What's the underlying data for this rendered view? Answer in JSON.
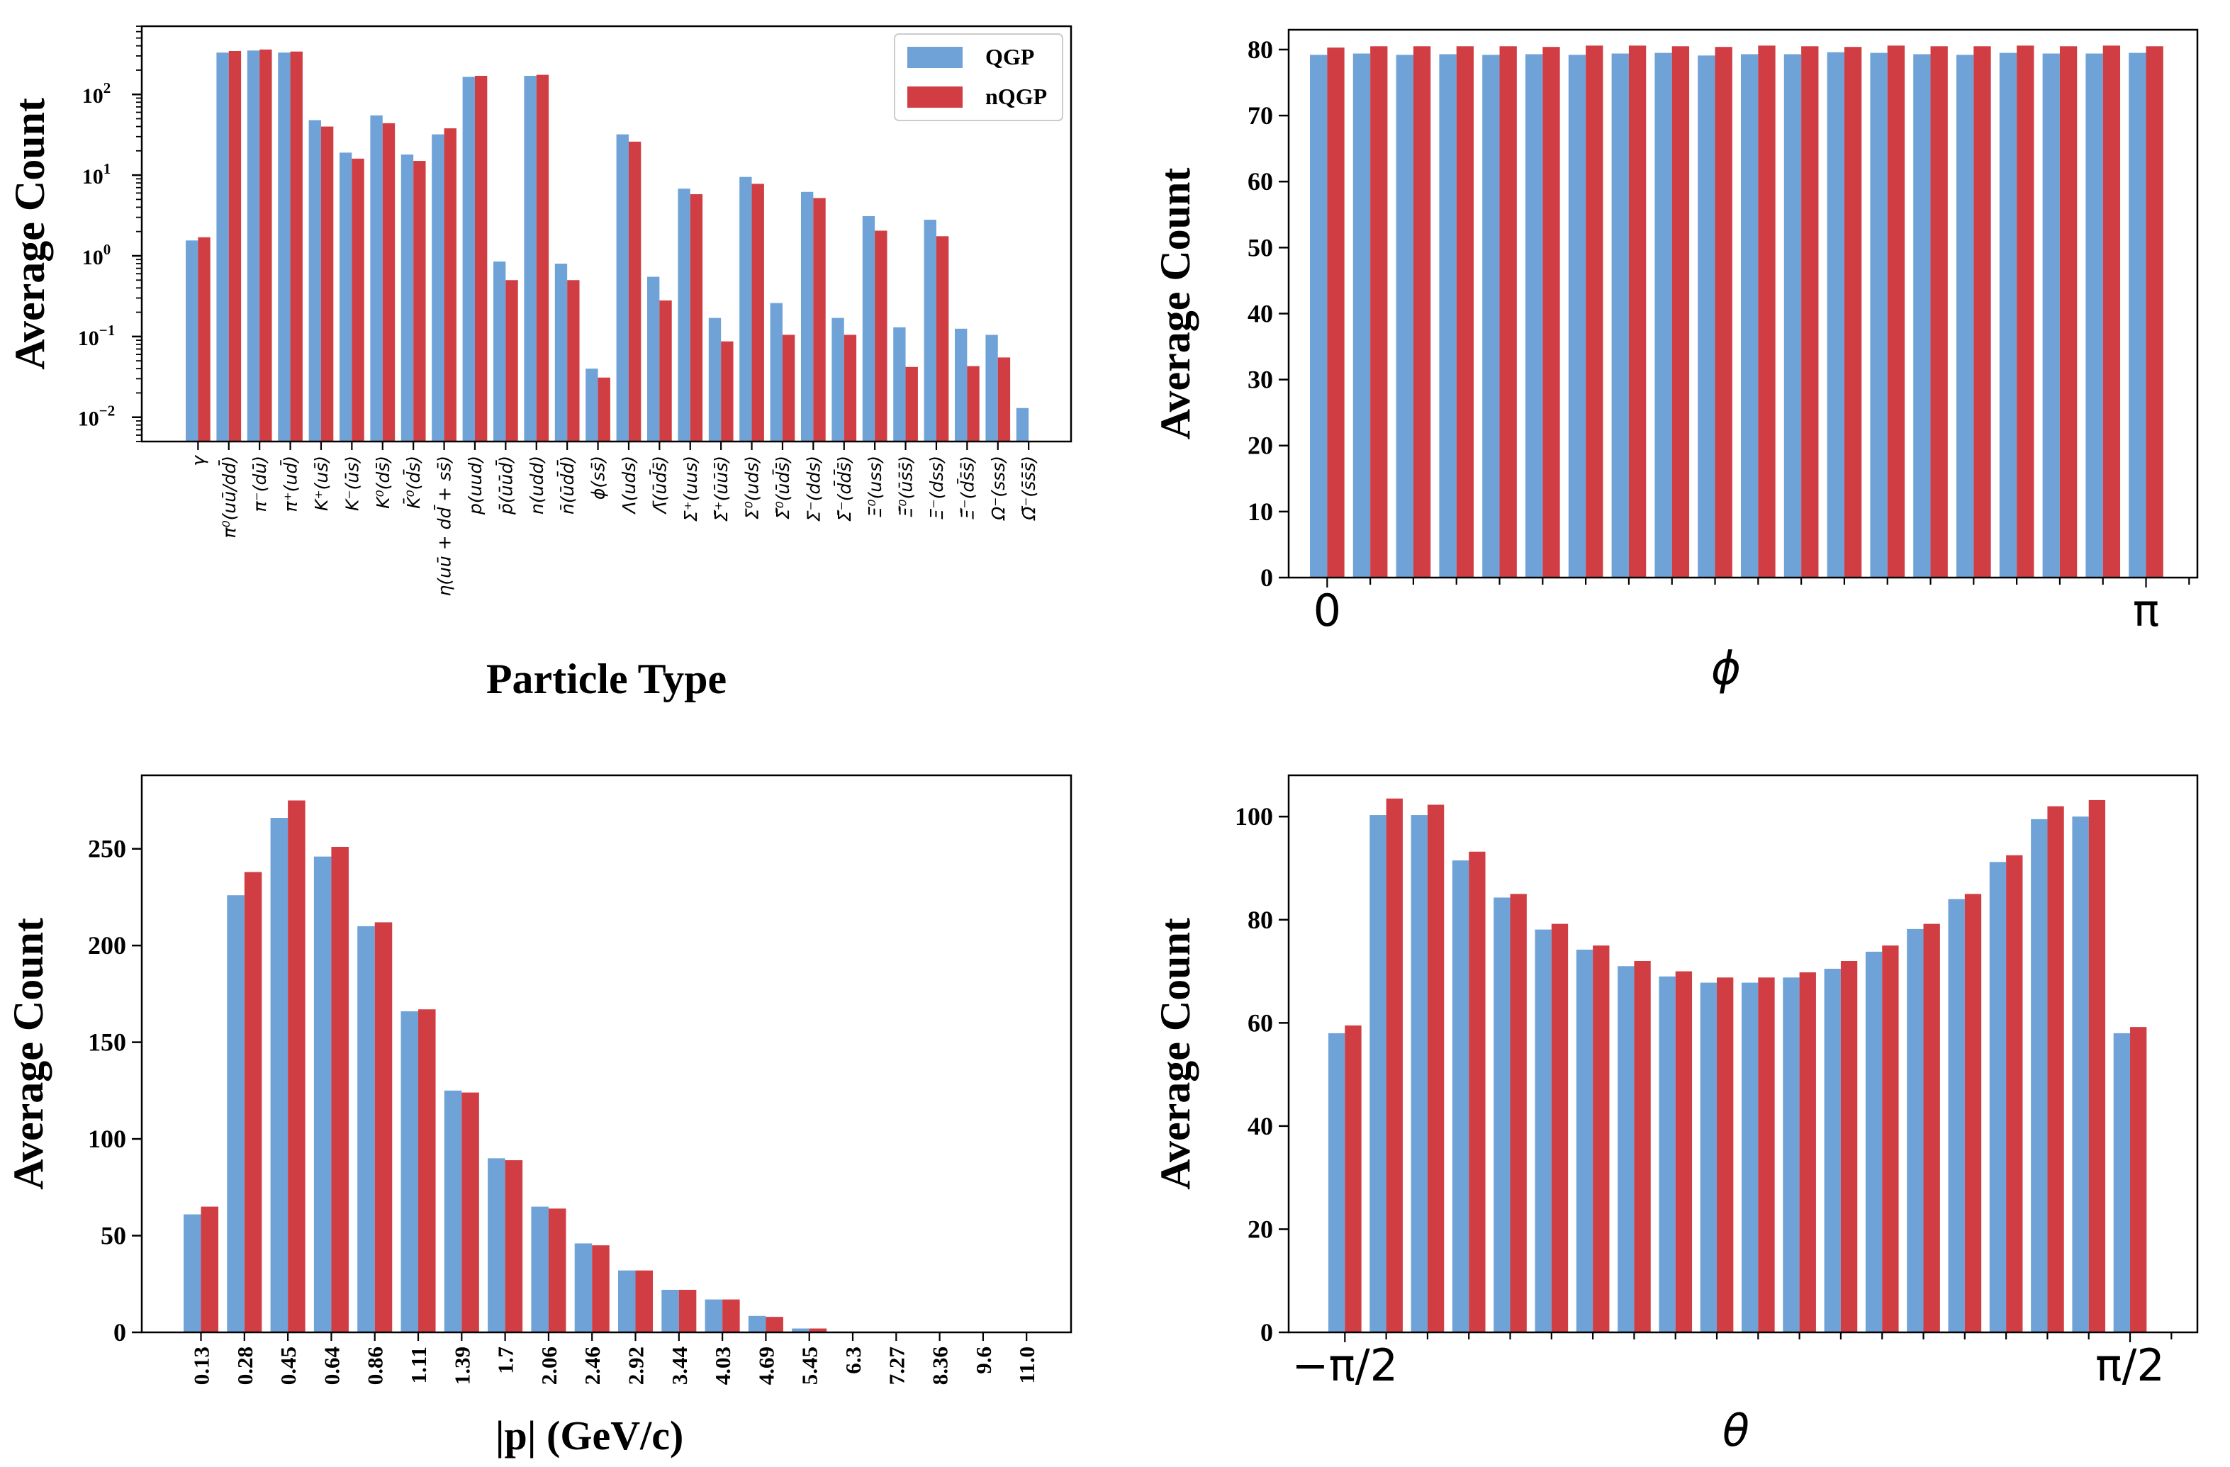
{
  "colors": {
    "QGP": "#6fa3d8",
    "nQGP": "#d03e44"
  },
  "chart_data": [
    {
      "type": "bar",
      "scale": "log",
      "xlabel": "Particle Type",
      "ylabel": "Average Count",
      "ylim": [
        0.005,
        700
      ],
      "yticks": [
        0.01,
        0.1,
        1,
        10,
        100
      ],
      "ytick_labels": [
        [
          "10",
          "−2"
        ],
        [
          "10",
          "−1"
        ],
        [
          "10",
          "0"
        ],
        [
          "10",
          "1"
        ],
        [
          "10",
          "2"
        ]
      ],
      "legend": {
        "position": "top-right",
        "entries": [
          "QGP",
          "nQGP"
        ]
      },
      "categories": [
        "γ",
        "π⁰(uū/dd̄)",
        "π⁻(dū)",
        "π⁺(ud̄)",
        "K⁺(us̄)",
        "K⁻(ūs)",
        "K⁰(ds̄)",
        "K̄⁰(d̄s)",
        "η(uū + dd̄ + ss̄)",
        "p(uud)",
        "p̄(ūūd̄)",
        "n(udd)",
        "n̄(ūd̄d̄)",
        "ϕ(ss̄)",
        "Λ(uds)",
        "Λ̄(ūd̄s̄)",
        "Σ⁺(uus)",
        "Σ̄⁺(ūūs̄)",
        "Σ⁰(uds)",
        "Σ̄⁰(ūd̄s̄)",
        "Σ⁻(dds)",
        "Σ̄⁻(d̄d̄s̄)",
        "Ξ⁰(uss)",
        "Ξ̄⁰(ūs̄s̄)",
        "Ξ⁻(dss)",
        "Ξ̄⁻(d̄s̄s̄)",
        "Ω⁻(sss)",
        "Ω̄⁻(s̄s̄s̄)"
      ],
      "series": [
        {
          "name": "QGP",
          "values": [
            1.55,
            330,
            350,
            330,
            48,
            19,
            55,
            18,
            32,
            165,
            0.85,
            170,
            0.8,
            0.04,
            32,
            0.55,
            6.8,
            0.17,
            9.5,
            0.26,
            6.2,
            0.17,
            3.1,
            0.13,
            2.8,
            0.125,
            0.105,
            0.013
          ]
        },
        {
          "name": "nQGP",
          "values": [
            1.7,
            345,
            360,
            340,
            40,
            16,
            44,
            15,
            38,
            170,
            0.5,
            175,
            0.5,
            0.031,
            26,
            0.28,
            5.8,
            0.087,
            7.8,
            0.105,
            5.2,
            0.105,
            2.05,
            0.042,
            1.75,
            0.043,
            0.055,
            0.0042
          ]
        }
      ]
    },
    {
      "type": "bar",
      "xlabel": "ϕ",
      "ylabel": "Average Count",
      "ylim": [
        0,
        83
      ],
      "yticks": [
        0,
        10,
        20,
        30,
        40,
        50,
        60,
        70,
        80
      ],
      "xtick_labels": [
        "0",
        "π"
      ],
      "series": [
        {
          "name": "QGP",
          "values": [
            79.2,
            79.4,
            79.2,
            79.3,
            79.2,
            79.3,
            79.2,
            79.4,
            79.5,
            79.1,
            79.3,
            79.3,
            79.6,
            79.5,
            79.3,
            79.2,
            79.5,
            79.4,
            79.4,
            79.5
          ]
        },
        {
          "name": "nQGP",
          "values": [
            80.3,
            80.5,
            80.5,
            80.5,
            80.5,
            80.4,
            80.6,
            80.6,
            80.5,
            80.4,
            80.6,
            80.5,
            80.4,
            80.6,
            80.5,
            80.5,
            80.6,
            80.5,
            80.6,
            80.5
          ]
        }
      ]
    },
    {
      "type": "bar",
      "xlabel": "|p| (GeV/c)",
      "ylabel": "Average Count",
      "ylim": [
        0,
        288
      ],
      "yticks": [
        0,
        50,
        100,
        150,
        200,
        250
      ],
      "categories": [
        "0.13",
        "0.28",
        "0.45",
        "0.64",
        "0.86",
        "1.11",
        "1.39",
        "1.7",
        "2.06",
        "2.46",
        "2.92",
        "3.44",
        "4.03",
        "4.69",
        "5.45",
        "6.3",
        "7.27",
        "8.36",
        "9.6",
        "11.0"
      ],
      "series": [
        {
          "name": "QGP",
          "values": [
            61,
            226,
            266,
            246,
            210,
            166,
            125,
            90,
            65,
            46,
            32,
            22,
            17,
            8.5,
            2,
            0.3,
            0.1,
            0,
            0,
            0
          ]
        },
        {
          "name": "nQGP",
          "values": [
            65,
            238,
            275,
            251,
            212,
            167,
            124,
            89,
            64,
            45,
            32,
            22,
            17,
            8,
            2,
            0.3,
            0.1,
            0,
            0,
            0
          ]
        }
      ]
    },
    {
      "type": "bar",
      "xlabel": "θ",
      "ylabel": "Average Count",
      "ylim": [
        0,
        108
      ],
      "yticks": [
        0,
        20,
        40,
        60,
        80,
        100
      ],
      "xtick_labels": [
        "−π/2",
        "π/2"
      ],
      "series": [
        {
          "name": "QGP",
          "values": [
            58,
            100.3,
            100.3,
            91.5,
            84.3,
            78.1,
            74.2,
            71,
            69,
            67.8,
            67.8,
            68.8,
            70.5,
            73.8,
            78.2,
            84,
            91.2,
            99.5,
            100,
            58
          ]
        },
        {
          "name": "nQGP",
          "values": [
            59.5,
            103.5,
            102.3,
            93.2,
            85,
            79.2,
            75,
            72,
            70,
            68.8,
            68.8,
            69.8,
            72,
            75,
            79.2,
            85,
            92.5,
            102,
            103.2,
            59.2
          ]
        }
      ]
    }
  ]
}
